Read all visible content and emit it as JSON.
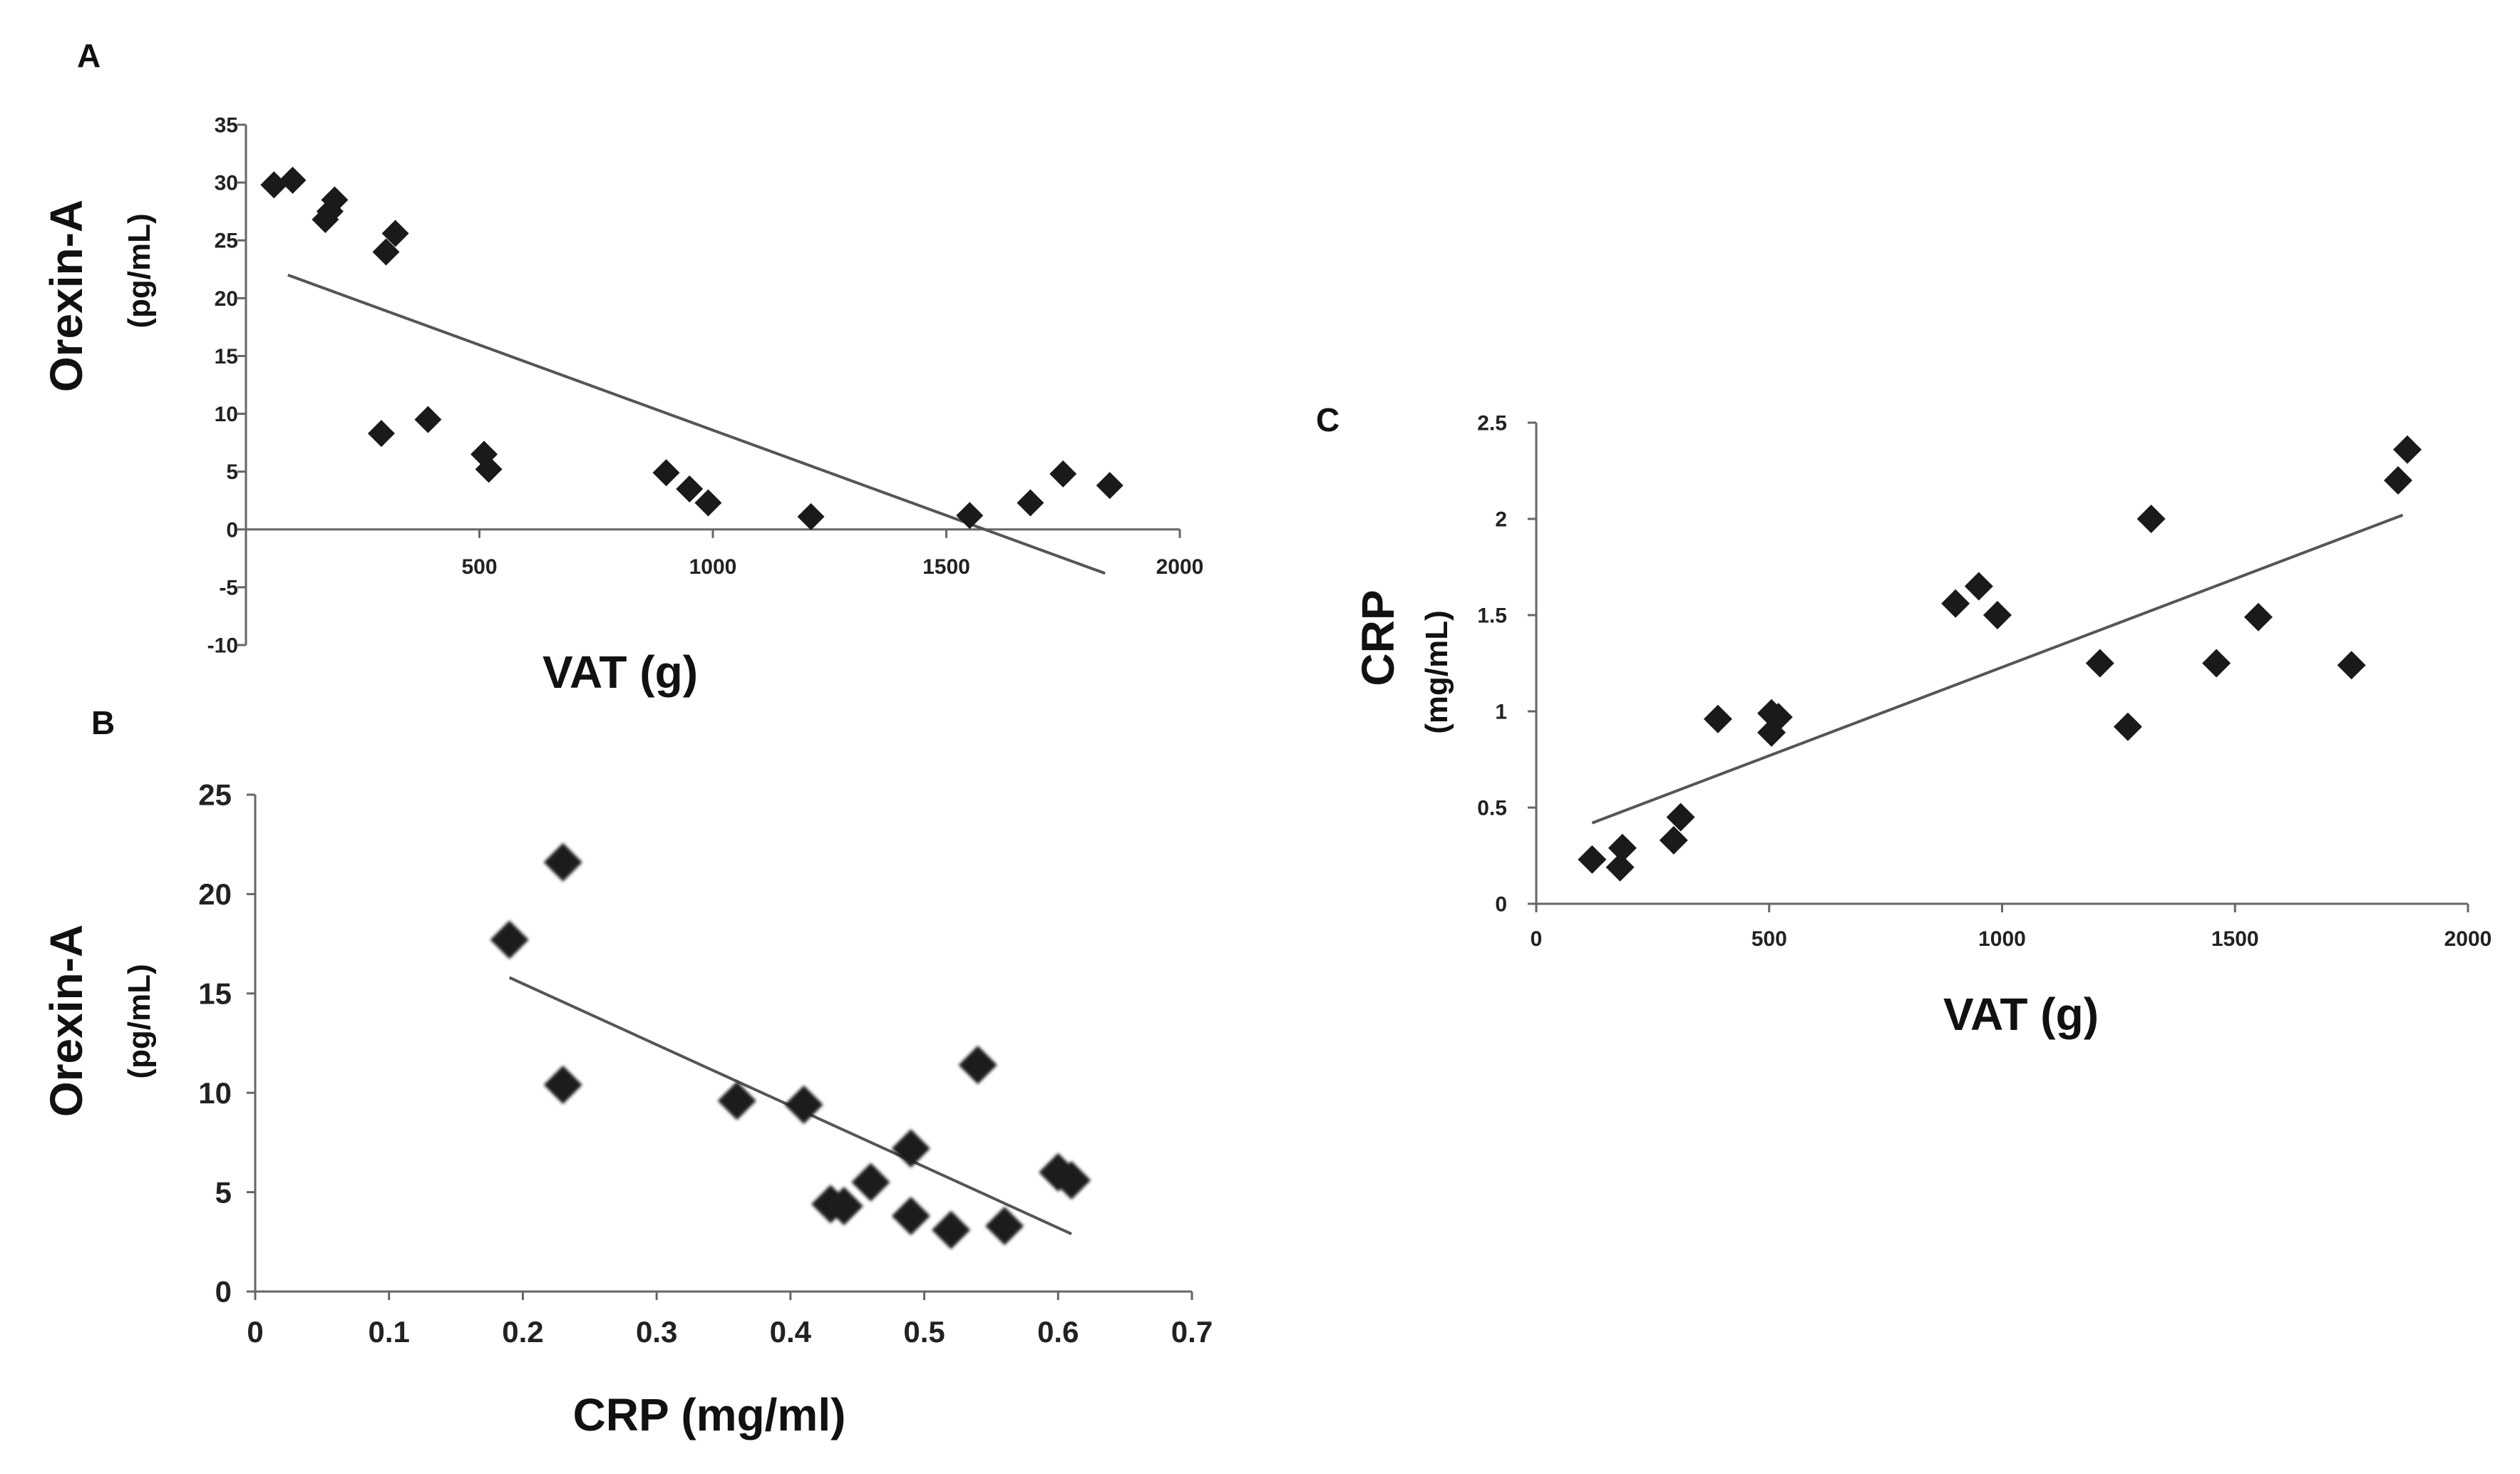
{
  "chart_data": [
    {
      "panel": "A",
      "type": "scatter",
      "title": "",
      "xlabel": "VAT (g)",
      "ylabel": "Orexin-A",
      "ylabel_unit": "(pg/mL)",
      "xlim": [
        0,
        2000
      ],
      "ylim": [
        -10,
        35
      ],
      "xticks": [
        500,
        1000,
        1500,
        2000
      ],
      "yticks": [
        35,
        30,
        25,
        20,
        15,
        10,
        5,
        0,
        -5,
        -10
      ],
      "points": [
        {
          "x": 60,
          "y": 29.8
        },
        {
          "x": 100,
          "y": 30.2
        },
        {
          "x": 170,
          "y": 26.8
        },
        {
          "x": 180,
          "y": 27.5
        },
        {
          "x": 190,
          "y": 28.5
        },
        {
          "x": 300,
          "y": 24.0
        },
        {
          "x": 320,
          "y": 25.6
        },
        {
          "x": 290,
          "y": 8.3
        },
        {
          "x": 390,
          "y": 9.5
        },
        {
          "x": 510,
          "y": 6.5
        },
        {
          "x": 520,
          "y": 5.2
        },
        {
          "x": 900,
          "y": 4.9
        },
        {
          "x": 950,
          "y": 3.5
        },
        {
          "x": 990,
          "y": 2.3
        },
        {
          "x": 1210,
          "y": 1.1
        },
        {
          "x": 1550,
          "y": 1.2
        },
        {
          "x": 1680,
          "y": 2.3
        },
        {
          "x": 1750,
          "y": 4.8
        },
        {
          "x": 1850,
          "y": 3.8
        }
      ],
      "trendline": {
        "x": [
          90,
          1840
        ],
        "y": [
          22,
          -3.8
        ]
      }
    },
    {
      "panel": "B",
      "type": "scatter",
      "title": "",
      "xlabel": "CRP (mg/ml)",
      "ylabel": "Orexin-A",
      "ylabel_unit": "(pg/mL)",
      "xlim": [
        0,
        0.7
      ],
      "ylim": [
        0,
        25
      ],
      "xticks": [
        "0",
        "0.1",
        "0.2",
        "0.3",
        "0.4",
        "0.5",
        "0.6",
        "0.7"
      ],
      "yticks": [
        "0",
        "5",
        "10",
        "15",
        "20",
        "25"
      ],
      "points": [
        {
          "x": 0.19,
          "y": 17.7
        },
        {
          "x": 0.23,
          "y": 21.6
        },
        {
          "x": 0.23,
          "y": 10.4
        },
        {
          "x": 0.36,
          "y": 9.6
        },
        {
          "x": 0.41,
          "y": 9.4
        },
        {
          "x": 0.43,
          "y": 4.4
        },
        {
          "x": 0.44,
          "y": 4.3
        },
        {
          "x": 0.46,
          "y": 5.5
        },
        {
          "x": 0.49,
          "y": 7.2
        },
        {
          "x": 0.49,
          "y": 3.8
        },
        {
          "x": 0.52,
          "y": 3.1
        },
        {
          "x": 0.54,
          "y": 11.4
        },
        {
          "x": 0.56,
          "y": 3.3
        },
        {
          "x": 0.6,
          "y": 6.0
        },
        {
          "x": 0.61,
          "y": 5.6
        }
      ],
      "trendline": {
        "x": [
          0.19,
          0.61
        ],
        "y": [
          15.8,
          2.9
        ]
      }
    },
    {
      "panel": "C",
      "type": "scatter",
      "title": "",
      "xlabel": "VAT (g)",
      "ylabel": "CRP",
      "ylabel_unit": "(mg/mL)",
      "xlim": [
        0,
        2000
      ],
      "ylim": [
        0,
        2.5
      ],
      "xticks": [
        "0",
        "500",
        "1000",
        "1500",
        "2000"
      ],
      "yticks": [
        "0",
        "0.5",
        "1",
        "1.5",
        "2",
        "2.5"
      ],
      "points": [
        {
          "x": 120,
          "y": 0.23
        },
        {
          "x": 180,
          "y": 0.19
        },
        {
          "x": 185,
          "y": 0.29
        },
        {
          "x": 295,
          "y": 0.33
        },
        {
          "x": 310,
          "y": 0.45
        },
        {
          "x": 390,
          "y": 0.96
        },
        {
          "x": 505,
          "y": 0.99
        },
        {
          "x": 505,
          "y": 0.89
        },
        {
          "x": 520,
          "y": 0.97
        },
        {
          "x": 900,
          "y": 1.56
        },
        {
          "x": 950,
          "y": 1.65
        },
        {
          "x": 990,
          "y": 1.5
        },
        {
          "x": 1210,
          "y": 1.25
        },
        {
          "x": 1270,
          "y": 0.92
        },
        {
          "x": 1320,
          "y": 2.0
        },
        {
          "x": 1460,
          "y": 1.25
        },
        {
          "x": 1550,
          "y": 1.49
        },
        {
          "x": 1750,
          "y": 1.24
        },
        {
          "x": 1850,
          "y": 2.2
        },
        {
          "x": 1870,
          "y": 2.36
        }
      ],
      "trendline": {
        "x": [
          120,
          1860
        ],
        "y": [
          0.42,
          2.02
        ]
      }
    }
  ]
}
